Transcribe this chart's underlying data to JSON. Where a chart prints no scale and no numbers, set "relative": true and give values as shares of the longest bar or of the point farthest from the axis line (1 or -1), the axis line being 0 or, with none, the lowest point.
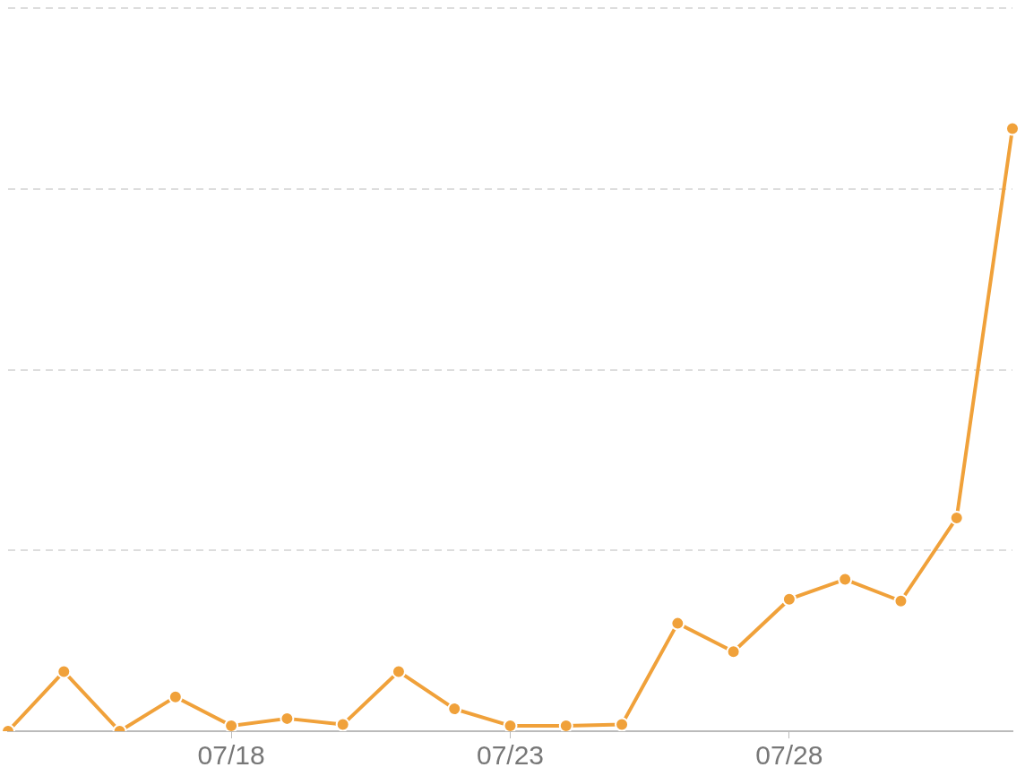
{
  "chart_data": {
    "type": "line",
    "relative": true,
    "categories": [
      null,
      null,
      null,
      null,
      "07/18",
      null,
      null,
      null,
      null,
      "07/23",
      null,
      null,
      null,
      null,
      "07/28",
      null,
      null,
      null,
      null
    ],
    "series": [
      {
        "color": "#f0a13a",
        "values": [
          0,
          0.099,
          0,
          0.057,
          0.009,
          0.021,
          0.011,
          0.099,
          0.037,
          0.009,
          0.009,
          0.011,
          0.179,
          0.132,
          0.219,
          0.252,
          0.216,
          0.354,
          1
        ]
      }
    ],
    "grid": "y",
    "legend": false,
    "marker": "circle",
    "line_style": "solid"
  }
}
